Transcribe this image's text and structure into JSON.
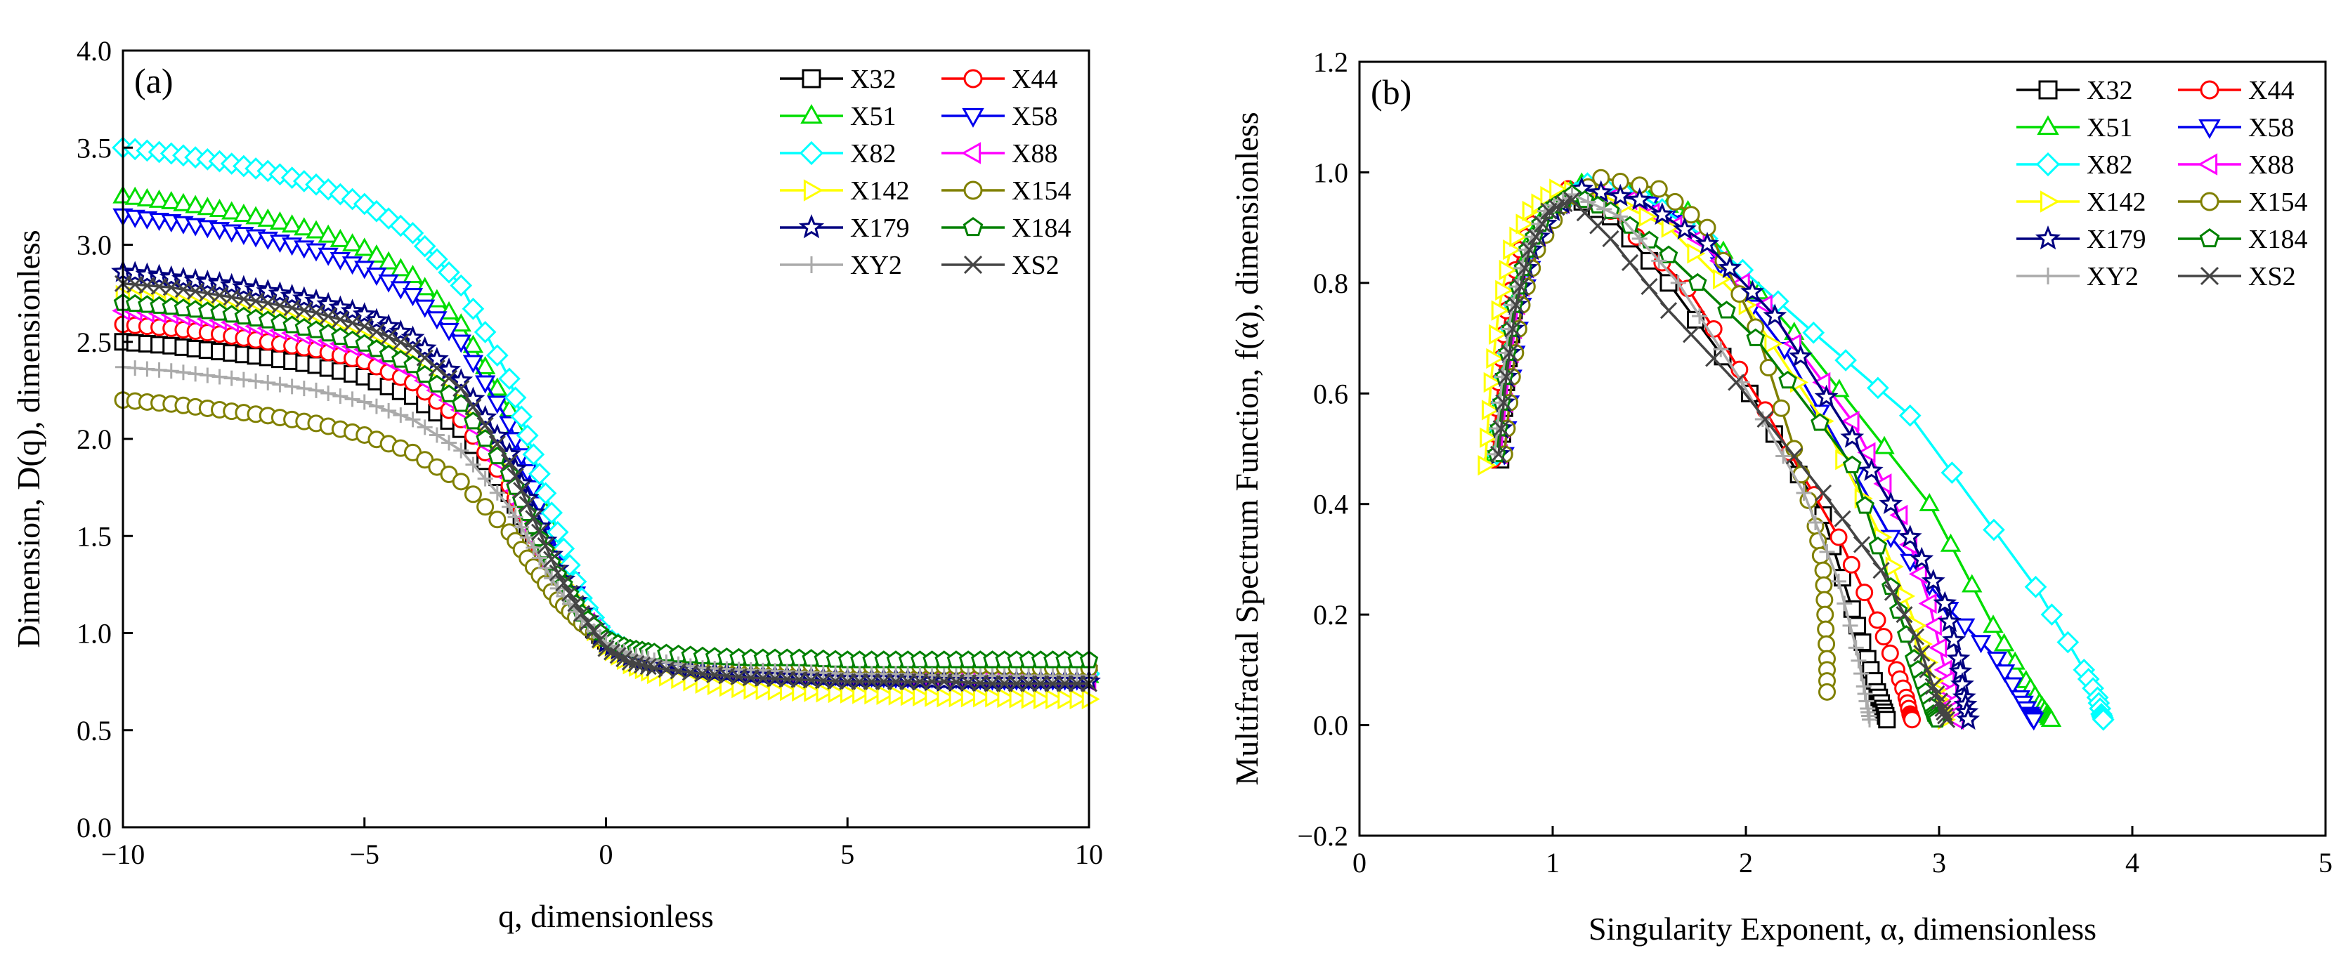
{
  "chart_data": [
    {
      "type": "line",
      "panel_label": "(a)",
      "xlabel": "q, dimensionless",
      "ylabel": "Dimension, D(q), dimensionless",
      "xlim": [
        -10,
        10
      ],
      "ylim": [
        0,
        4
      ],
      "xticks": [
        -10,
        -5,
        0,
        5,
        10
      ],
      "xtick_labels": [
        "−10",
        "−5",
        "0",
        "5",
        "10"
      ],
      "yticks": [
        0,
        0.5,
        1,
        1.5,
        2,
        2.5,
        3,
        3.5,
        4
      ],
      "ytick_labels": [
        "0.0",
        "0.5",
        "1.0",
        "1.5",
        "2.0",
        "2.5",
        "3.0",
        "3.5",
        "4.0"
      ],
      "grid": false,
      "legend_position": "top-right",
      "x": [
        -10,
        -9,
        -8,
        -7,
        -6,
        -5,
        -4,
        -3,
        -2,
        -1.5,
        -1,
        -0.5,
        0,
        0.5,
        1,
        2,
        3,
        4,
        5,
        6,
        7,
        8,
        9,
        10
      ],
      "series": [
        {
          "name": "X32",
          "color": "#000000",
          "marker": "square",
          "values": [
            2.5,
            2.48,
            2.45,
            2.42,
            2.38,
            2.32,
            2.22,
            2.05,
            1.72,
            1.48,
            1.25,
            1.08,
            0.96,
            0.9,
            0.87,
            0.84,
            0.83,
            0.82,
            0.81,
            0.8,
            0.8,
            0.79,
            0.79,
            0.79
          ]
        },
        {
          "name": "X44",
          "color": "#ff0000",
          "marker": "circle",
          "values": [
            2.59,
            2.57,
            2.54,
            2.5,
            2.46,
            2.4,
            2.29,
            2.1,
            1.76,
            1.5,
            1.26,
            1.08,
            0.95,
            0.89,
            0.86,
            0.83,
            0.81,
            0.8,
            0.79,
            0.79,
            0.78,
            0.78,
            0.78,
            0.78
          ]
        },
        {
          "name": "X51",
          "color": "#00dd00",
          "marker": "triangle-up",
          "values": [
            3.25,
            3.22,
            3.18,
            3.13,
            3.07,
            2.98,
            2.84,
            2.59,
            2.15,
            1.8,
            1.45,
            1.15,
            0.97,
            0.9,
            0.87,
            0.84,
            0.82,
            0.81,
            0.8,
            0.79,
            0.79,
            0.79,
            0.78,
            0.78
          ]
        },
        {
          "name": "X58",
          "color": "#0000ee",
          "marker": "triangle-down",
          "values": [
            3.15,
            3.12,
            3.08,
            3.03,
            2.97,
            2.88,
            2.74,
            2.5,
            2.08,
            1.75,
            1.42,
            1.13,
            0.96,
            0.89,
            0.86,
            0.82,
            0.8,
            0.79,
            0.78,
            0.77,
            0.77,
            0.76,
            0.76,
            0.76
          ]
        },
        {
          "name": "X82",
          "color": "#00ffff",
          "marker": "diamond",
          "values": [
            3.5,
            3.47,
            3.43,
            3.38,
            3.31,
            3.21,
            3.06,
            2.79,
            2.31,
            1.92,
            1.52,
            1.18,
            0.98,
            0.91,
            0.88,
            0.85,
            0.83,
            0.82,
            0.81,
            0.8,
            0.8,
            0.8,
            0.79,
            0.79
          ]
        },
        {
          "name": "X88",
          "color": "#ff00ff",
          "marker": "triangle-left",
          "values": [
            2.66,
            2.64,
            2.61,
            2.57,
            2.52,
            2.46,
            2.35,
            2.15,
            1.8,
            1.53,
            1.28,
            1.09,
            0.95,
            0.89,
            0.85,
            0.81,
            0.79,
            0.78,
            0.77,
            0.77,
            0.76,
            0.76,
            0.76,
            0.75
          ]
        },
        {
          "name": "X142",
          "color": "#ffff00",
          "marker": "triangle-right",
          "values": [
            2.74,
            2.71,
            2.68,
            2.64,
            2.59,
            2.52,
            2.4,
            2.19,
            1.83,
            1.56,
            1.3,
            1.09,
            0.93,
            0.84,
            0.79,
            0.74,
            0.71,
            0.7,
            0.69,
            0.68,
            0.67,
            0.67,
            0.66,
            0.66
          ]
        },
        {
          "name": "X154",
          "color": "#808000",
          "marker": "circle",
          "values": [
            2.2,
            2.18,
            2.15,
            2.12,
            2.08,
            2.02,
            1.93,
            1.78,
            1.52,
            1.34,
            1.17,
            1.05,
            0.96,
            0.91,
            0.89,
            0.86,
            0.85,
            0.84,
            0.83,
            0.83,
            0.83,
            0.83,
            0.82,
            0.82
          ]
        },
        {
          "name": "X179",
          "color": "#000080",
          "marker": "star",
          "values": [
            2.86,
            2.83,
            2.8,
            2.76,
            2.71,
            2.64,
            2.52,
            2.3,
            1.92,
            1.62,
            1.33,
            1.11,
            0.95,
            0.88,
            0.84,
            0.8,
            0.78,
            0.77,
            0.76,
            0.76,
            0.75,
            0.75,
            0.75,
            0.75
          ]
        },
        {
          "name": "X184",
          "color": "#008000",
          "marker": "pentagon",
          "values": [
            2.7,
            2.68,
            2.65,
            2.61,
            2.56,
            2.49,
            2.38,
            2.18,
            1.82,
            1.55,
            1.3,
            1.1,
            0.97,
            0.92,
            0.9,
            0.88,
            0.87,
            0.87,
            0.86,
            0.86,
            0.86,
            0.86,
            0.86,
            0.86
          ]
        },
        {
          "name": "XY2",
          "color": "#aaaaaa",
          "marker": "plus",
          "values": [
            2.37,
            2.35,
            2.32,
            2.29,
            2.25,
            2.19,
            2.1,
            1.94,
            1.65,
            1.44,
            1.23,
            1.07,
            0.95,
            0.89,
            0.86,
            0.82,
            0.81,
            0.8,
            0.79,
            0.79,
            0.78,
            0.78,
            0.78,
            0.78
          ]
        },
        {
          "name": "XS2",
          "color": "#444444",
          "marker": "x",
          "values": [
            2.8,
            2.78,
            2.74,
            2.7,
            2.65,
            2.58,
            2.47,
            2.26,
            1.88,
            1.59,
            1.31,
            1.1,
            0.92,
            0.85,
            0.82,
            0.79,
            0.77,
            0.76,
            0.75,
            0.75,
            0.75,
            0.74,
            0.74,
            0.74
          ]
        }
      ]
    },
    {
      "type": "line",
      "panel_label": "(b)",
      "xlabel": "Singularity Exponent, α, dimensionless",
      "ylabel": "Multifractal Spectrum Function, f(α), dimensionless",
      "xlim": [
        0,
        5
      ],
      "ylim": [
        -0.2,
        1.2
      ],
      "xticks": [
        0,
        1,
        2,
        3,
        4,
        5
      ],
      "xtick_labels": [
        "0",
        "1",
        "2",
        "3",
        "4",
        "5"
      ],
      "yticks": [
        -0.2,
        0,
        0.2,
        0.4,
        0.6,
        0.8,
        1.0,
        1.2
      ],
      "ytick_labels": [
        "−0.2",
        "0.0",
        "0.2",
        "0.4",
        "0.6",
        "0.8",
        "1.0",
        "1.2"
      ],
      "grid": false,
      "legend_position": "top-right",
      "series": [
        {
          "name": "X32",
          "color": "#000000",
          "marker": "square",
          "x": [
            0.73,
            0.76,
            0.8,
            0.86,
            0.95,
            1.08,
            1.3,
            1.6,
            2.02,
            2.4,
            2.55,
            2.63,
            2.68,
            2.71,
            2.73
          ],
          "y": [
            0.48,
            0.62,
            0.75,
            0.85,
            0.92,
            0.96,
            0.92,
            0.8,
            0.6,
            0.38,
            0.21,
            0.12,
            0.06,
            0.03,
            0.01
          ]
        },
        {
          "name": "X44",
          "color": "#ff0000",
          "marker": "circle",
          "x": [
            0.69,
            0.72,
            0.76,
            0.83,
            0.93,
            1.08,
            1.3,
            1.7,
            2.1,
            2.48,
            2.68,
            2.78,
            2.83,
            2.85,
            2.86
          ],
          "y": [
            0.48,
            0.62,
            0.75,
            0.86,
            0.93,
            0.97,
            0.93,
            0.79,
            0.57,
            0.34,
            0.19,
            0.1,
            0.05,
            0.02,
            0.01
          ]
        },
        {
          "name": "X51",
          "color": "#00dd00",
          "marker": "triangle-up",
          "x": [
            0.7,
            0.74,
            0.79,
            0.87,
            0.98,
            1.15,
            1.4,
            1.7,
            2.25,
            2.95,
            3.28,
            3.45,
            3.52,
            3.56,
            3.58
          ],
          "y": [
            0.49,
            0.63,
            0.76,
            0.87,
            0.94,
            0.98,
            0.96,
            0.93,
            0.71,
            0.4,
            0.18,
            0.08,
            0.04,
            0.02,
            0.01
          ]
        },
        {
          "name": "X58",
          "color": "#0000ee",
          "marker": "triangle-down",
          "x": [
            0.75,
            0.79,
            0.84,
            0.91,
            1.02,
            1.18,
            1.4,
            1.7,
            2.2,
            2.75,
            3.05,
            3.3,
            3.42,
            3.47,
            3.49
          ],
          "y": [
            0.49,
            0.63,
            0.76,
            0.86,
            0.93,
            0.97,
            0.96,
            0.91,
            0.68,
            0.34,
            0.21,
            0.12,
            0.05,
            0.02,
            0.01
          ]
        },
        {
          "name": "X82",
          "color": "#00ffff",
          "marker": "diamond",
          "x": [
            0.71,
            0.75,
            0.8,
            0.88,
            1.0,
            1.18,
            1.45,
            1.8,
            2.35,
            2.85,
            3.5,
            3.75,
            3.82,
            3.84,
            3.85
          ],
          "y": [
            0.49,
            0.63,
            0.76,
            0.86,
            0.93,
            0.98,
            0.96,
            0.88,
            0.71,
            0.56,
            0.25,
            0.1,
            0.05,
            0.02,
            0.01
          ]
        },
        {
          "name": "X88",
          "color": "#ff00ff",
          "marker": "triangle-left",
          "x": [
            0.73,
            0.77,
            0.82,
            0.89,
            1.0,
            1.15,
            1.4,
            1.75,
            2.1,
            2.55,
            2.8,
            2.95,
            3.03,
            3.07,
            3.09
          ],
          "y": [
            0.49,
            0.63,
            0.76,
            0.86,
            0.93,
            0.97,
            0.95,
            0.88,
            0.76,
            0.55,
            0.38,
            0.22,
            0.1,
            0.04,
            0.01
          ]
        },
        {
          "name": "X142",
          "color": "#ffff00",
          "marker": "triangle-right",
          "x": [
            0.65,
            0.68,
            0.72,
            0.78,
            0.88,
            1.02,
            1.25,
            1.6,
            2.0,
            2.4,
            2.7,
            2.88,
            2.97,
            3.01,
            3.03
          ],
          "y": [
            0.47,
            0.62,
            0.75,
            0.86,
            0.93,
            0.97,
            0.96,
            0.9,
            0.76,
            0.55,
            0.34,
            0.18,
            0.08,
            0.03,
            0.01
          ]
        },
        {
          "name": "X154",
          "color": "#808000",
          "marker": "circle",
          "x": [
            0.75,
            0.79,
            0.84,
            0.92,
            1.05,
            1.25,
            1.55,
            1.8,
            2.05,
            2.25,
            2.36,
            2.4,
            2.41,
            2.42,
            2.42
          ],
          "y": [
            0.49,
            0.63,
            0.76,
            0.86,
            0.94,
            0.99,
            0.97,
            0.9,
            0.72,
            0.5,
            0.36,
            0.28,
            0.2,
            0.12,
            0.06
          ]
        },
        {
          "name": "X179",
          "color": "#000080",
          "marker": "star",
          "x": [
            0.72,
            0.76,
            0.81,
            0.89,
            1.0,
            1.15,
            1.45,
            1.8,
            2.15,
            2.55,
            2.85,
            3.03,
            3.1,
            3.13,
            3.15
          ],
          "y": [
            0.49,
            0.63,
            0.76,
            0.86,
            0.93,
            0.97,
            0.95,
            0.87,
            0.74,
            0.52,
            0.34,
            0.22,
            0.12,
            0.05,
            0.01
          ]
        },
        {
          "name": "X184",
          "color": "#008000",
          "marker": "pentagon",
          "x": [
            0.71,
            0.75,
            0.8,
            0.87,
            0.97,
            1.1,
            1.3,
            1.6,
            2.05,
            2.55,
            2.75,
            2.87,
            2.93,
            2.97,
            2.99
          ],
          "y": [
            0.49,
            0.63,
            0.76,
            0.86,
            0.93,
            0.96,
            0.93,
            0.85,
            0.7,
            0.47,
            0.25,
            0.12,
            0.06,
            0.02,
            0.01
          ]
        },
        {
          "name": "XY2",
          "color": "#aaaaaa",
          "marker": "plus",
          "x": [
            0.7,
            0.74,
            0.79,
            0.86,
            0.96,
            1.1,
            1.35,
            1.65,
            1.98,
            2.3,
            2.48,
            2.57,
            2.61,
            2.63,
            2.64
          ],
          "y": [
            0.49,
            0.63,
            0.76,
            0.86,
            0.93,
            0.96,
            0.92,
            0.8,
            0.62,
            0.42,
            0.26,
            0.14,
            0.07,
            0.03,
            0.01
          ]
        },
        {
          "name": "XS2",
          "color": "#444444",
          "marker": "x",
          "x": [
            0.72,
            0.76,
            0.81,
            0.88,
            0.98,
            1.1,
            1.3,
            1.6,
            1.95,
            2.4,
            2.7,
            2.88,
            2.97,
            3.02,
            3.04
          ],
          "y": [
            0.49,
            0.63,
            0.76,
            0.86,
            0.93,
            0.95,
            0.88,
            0.75,
            0.62,
            0.42,
            0.28,
            0.16,
            0.07,
            0.03,
            0.01
          ]
        }
      ]
    }
  ]
}
